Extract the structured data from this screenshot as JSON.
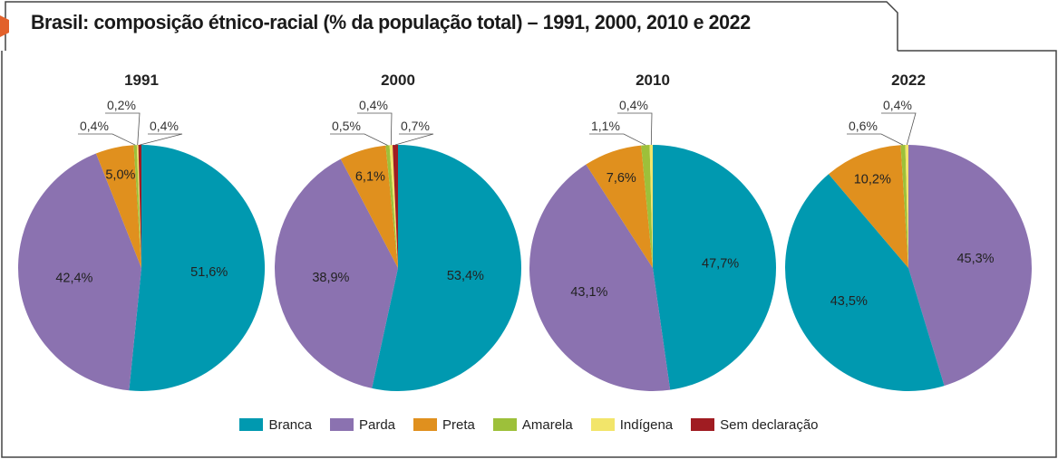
{
  "title": "Brasil: composição étnico-racial (% da população total) – 1991, 2000, 2010 e 2022",
  "colors": {
    "Branca": "#0099b0",
    "Parda": "#8b72b0",
    "Preta": "#e0901e",
    "Amarela": "#9dc03a",
    "Indígena": "#f2e56a",
    "Sem declaração": "#a01c22",
    "accent": "#e2602a"
  },
  "legend": [
    "Branca",
    "Parda",
    "Preta",
    "Amarela",
    "Indígena",
    "Sem declaração"
  ],
  "chart_data": [
    {
      "type": "pie",
      "title": "1991",
      "slices": [
        {
          "category": "Branca",
          "value": 51.6,
          "label": "51,6%"
        },
        {
          "category": "Parda",
          "value": 42.4,
          "label": "42,4%"
        },
        {
          "category": "Preta",
          "value": 5.0,
          "label": "5,0%"
        },
        {
          "category": "Amarela",
          "value": 0.4,
          "label": "0,4%"
        },
        {
          "category": "Indígena",
          "value": 0.2,
          "label": "0,2%"
        },
        {
          "category": "Sem declaração",
          "value": 0.4,
          "label": "0,4%"
        }
      ]
    },
    {
      "type": "pie",
      "title": "2000",
      "slices": [
        {
          "category": "Branca",
          "value": 53.4,
          "label": "53,4%"
        },
        {
          "category": "Parda",
          "value": 38.9,
          "label": "38,9%"
        },
        {
          "category": "Preta",
          "value": 6.1,
          "label": "6,1%"
        },
        {
          "category": "Amarela",
          "value": 0.5,
          "label": "0,5%"
        },
        {
          "category": "Indígena",
          "value": 0.4,
          "label": "0,4%"
        },
        {
          "category": "Sem declaração",
          "value": 0.7,
          "label": "0,7%"
        }
      ]
    },
    {
      "type": "pie",
      "title": "2010",
      "slices": [
        {
          "category": "Branca",
          "value": 47.7,
          "label": "47,7%"
        },
        {
          "category": "Parda",
          "value": 43.1,
          "label": "43,1%"
        },
        {
          "category": "Preta",
          "value": 7.6,
          "label": "7,6%"
        },
        {
          "category": "Amarela",
          "value": 1.1,
          "label": "1,1%"
        },
        {
          "category": "Indígena",
          "value": 0.4,
          "label": "0,4%"
        }
      ]
    },
    {
      "type": "pie",
      "title": "2022",
      "slices": [
        {
          "category": "Parda",
          "value": 45.3,
          "label": "45,3%"
        },
        {
          "category": "Branca",
          "value": 43.5,
          "label": "43,5%"
        },
        {
          "category": "Preta",
          "value": 10.2,
          "label": "10,2%"
        },
        {
          "category": "Amarela",
          "value": 0.6,
          "label": "0,6%"
        },
        {
          "category": "Indígena",
          "value": 0.4,
          "label": "0,4%"
        }
      ]
    }
  ]
}
